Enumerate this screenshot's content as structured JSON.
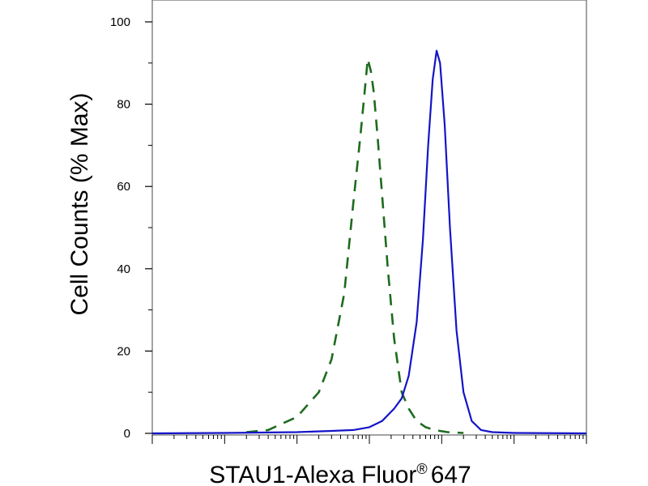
{
  "chart_data": {
    "type": "line",
    "title": "",
    "xlabel": "STAU1-Alexa Fluor",
    "xlabel_superscript": "®",
    "xlabel_suffix": "647",
    "ylabel": "Cell Counts (% Max)",
    "x_scale": "log",
    "xlim": [
      10,
      10000000
    ],
    "ylim": [
      0,
      100
    ],
    "yticks": [
      0,
      20,
      40,
      60,
      80,
      100
    ],
    "grid": false,
    "legend": "none",
    "series": [
      {
        "style": "dashed",
        "color": "#1e6b1e",
        "x": [
          200,
          400,
          1000,
          2000,
          3000,
          4500,
          6000,
          7500,
          8500,
          9500,
          10500,
          11500,
          13000,
          15000,
          18000,
          22000,
          28000,
          35000,
          45000,
          60000,
          80000,
          120000,
          200000
        ],
        "y": [
          0.3,
          0.8,
          4,
          10,
          18,
          34,
          56,
          72,
          82,
          91,
          88,
          83,
          72,
          58,
          40,
          23,
          10,
          6,
          3,
          1.5,
          0.8,
          0.3,
          0.1
        ]
      },
      {
        "style": "solid",
        "color": "#1414c8",
        "x": [
          10,
          100,
          1000,
          3000,
          6000,
          10000,
          15000,
          22000,
          28000,
          35000,
          45000,
          55000,
          65000,
          75000,
          85000,
          95000,
          110000,
          130000,
          160000,
          200000,
          260000,
          350000,
          500000,
          1000000,
          10000000
        ],
        "y": [
          0,
          0.1,
          0.3,
          0.6,
          0.8,
          1.5,
          3,
          6,
          8.5,
          14,
          27,
          47,
          70,
          86,
          93,
          90,
          75,
          50,
          25,
          10,
          3,
          0.8,
          0.3,
          0.1,
          0
        ]
      }
    ]
  }
}
